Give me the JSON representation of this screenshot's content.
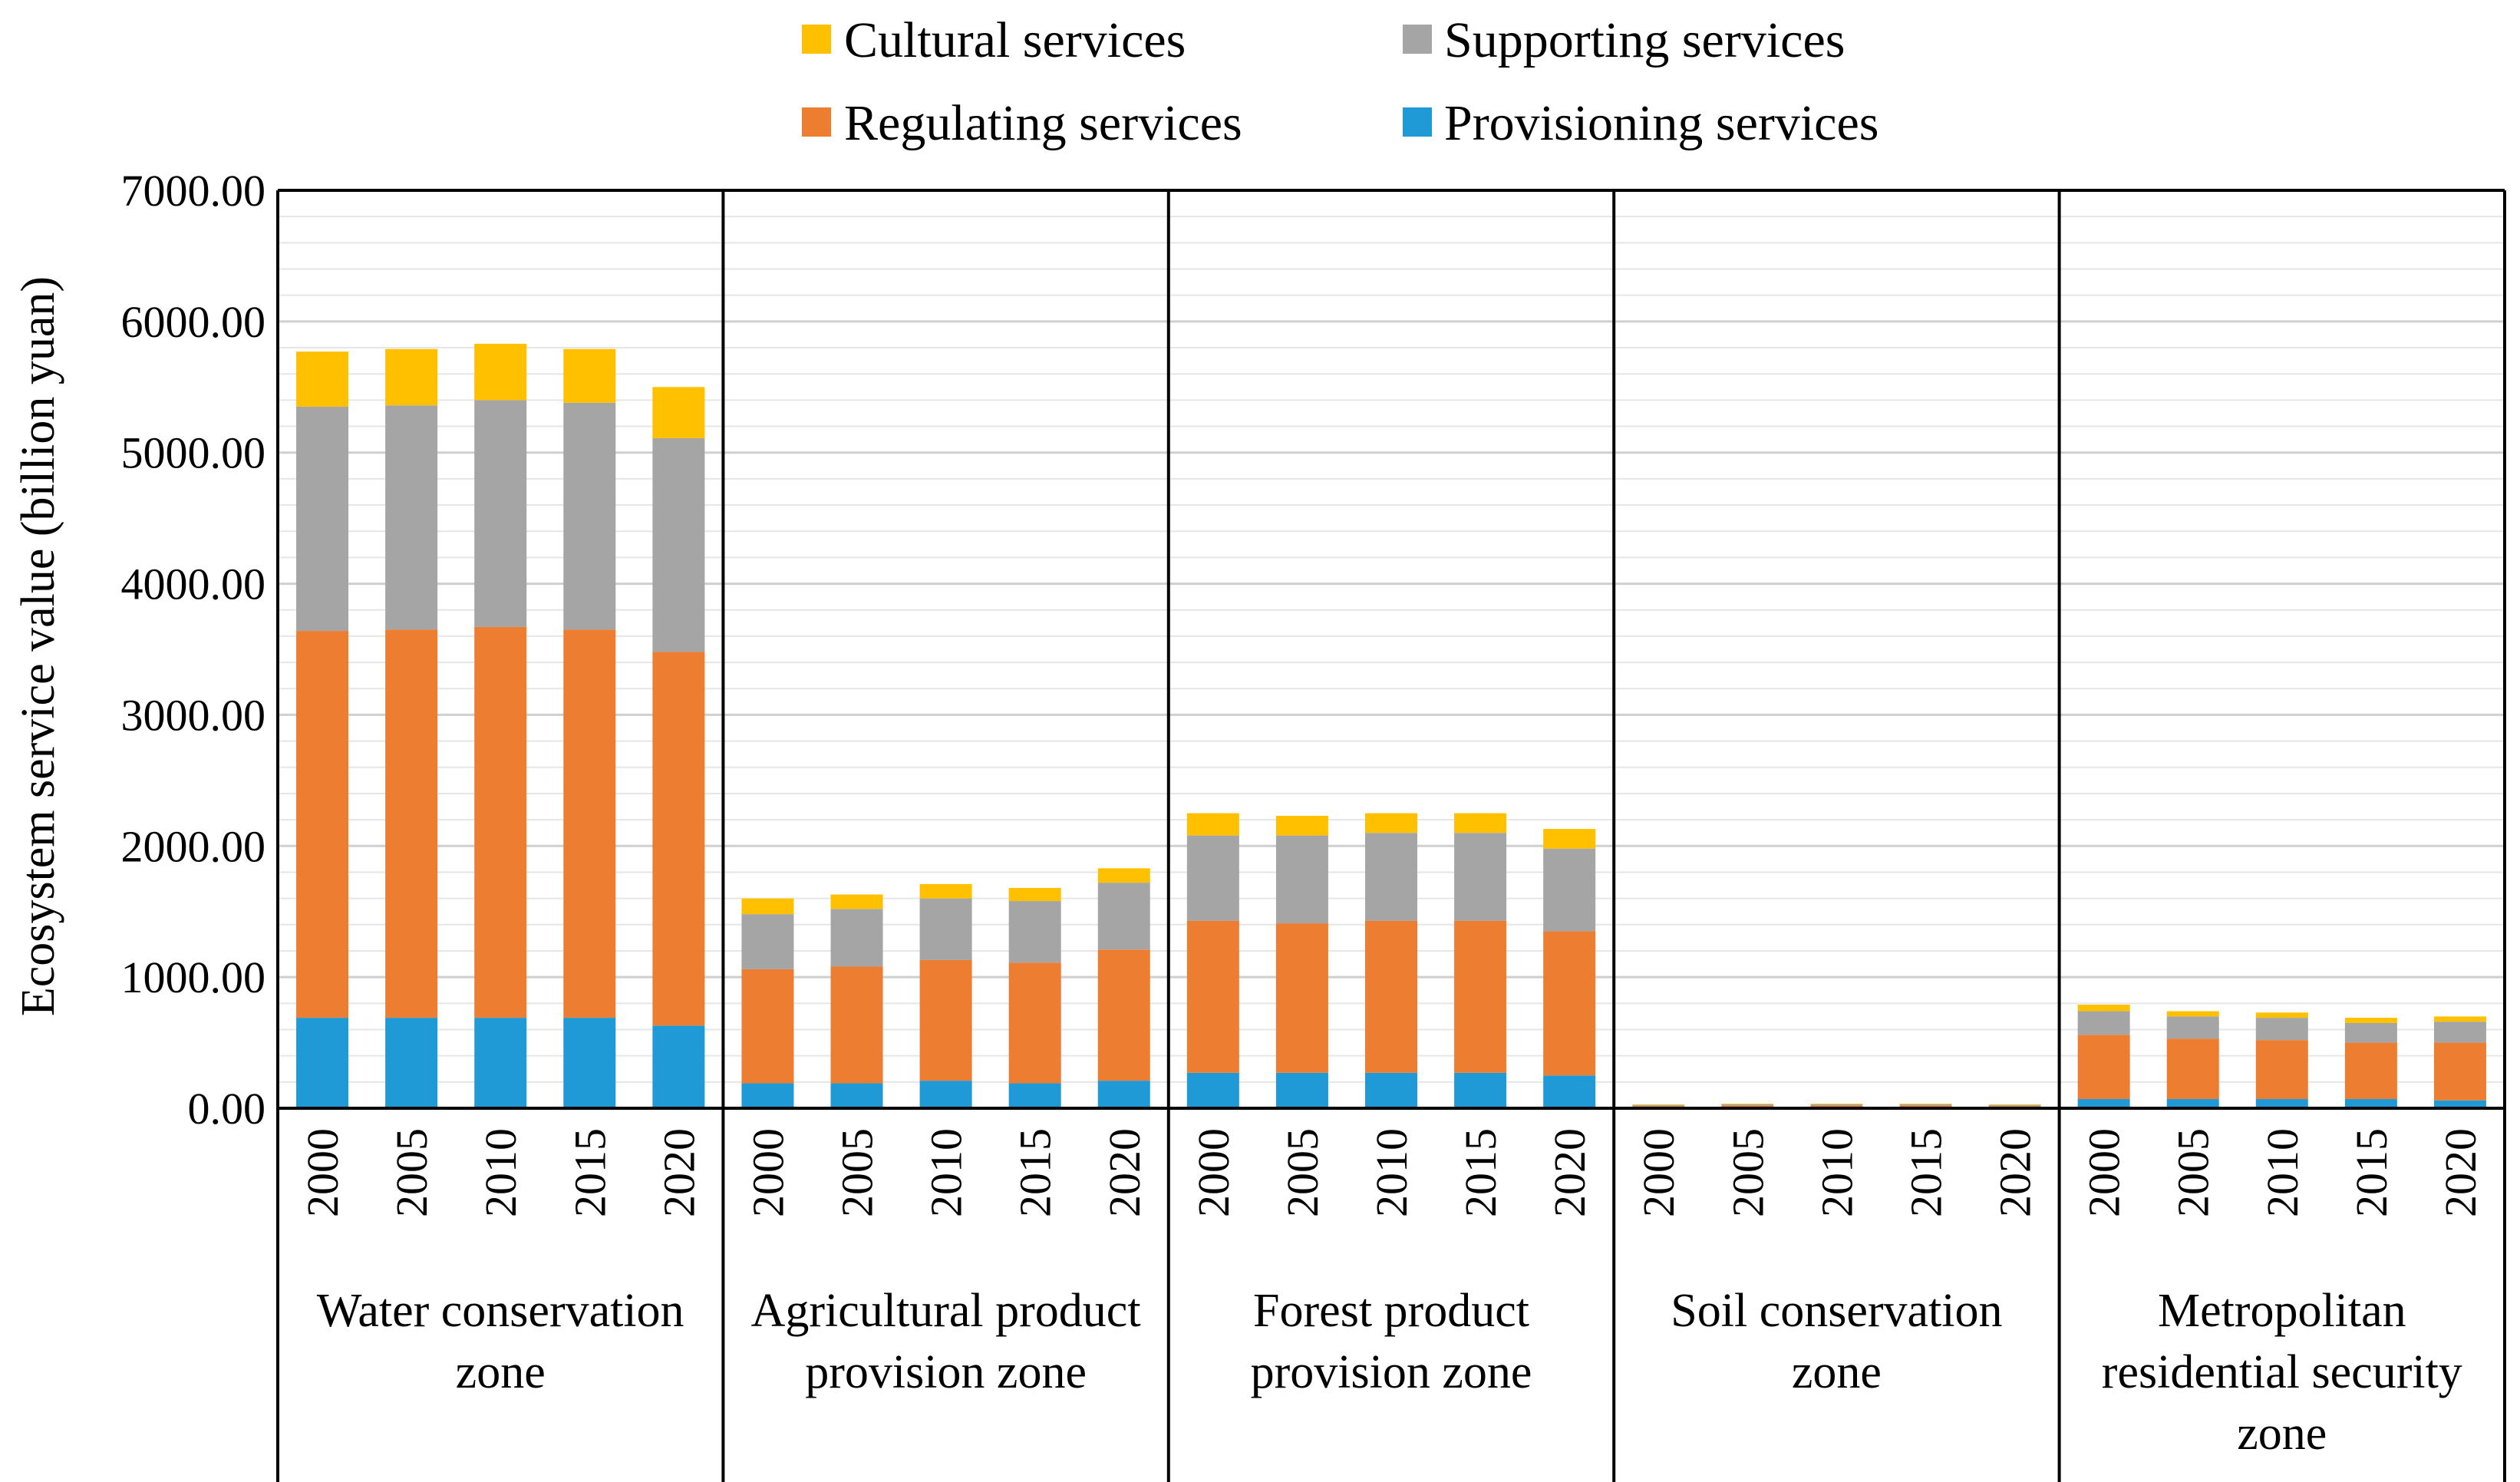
{
  "chart_data": {
    "type": "bar",
    "stacked": true,
    "ylabel": "Ecosystem service value (billion yuan)",
    "ylim": [
      0,
      7000
    ],
    "yticks": [
      0,
      1000,
      2000,
      3000,
      4000,
      5000,
      6000,
      7000
    ],
    "ytick_labels": [
      "0.00",
      "1000.00",
      "2000.00",
      "3000.00",
      "4000.00",
      "5000.00",
      "6000.00",
      "7000.00"
    ],
    "minor_gridlines_step": 200,
    "legend": [
      {
        "name": "Cultural services",
        "color": "#FFC000"
      },
      {
        "name": "Supporting services",
        "color": "#A5A5A5"
      },
      {
        "name": "Regulating services",
        "color": "#ED7D31"
      },
      {
        "name": "Provisioning services",
        "color": "#1F9AD6"
      }
    ],
    "groups": [
      {
        "name_lines": [
          "Water conservation",
          "zone"
        ]
      },
      {
        "name_lines": [
          "Agricultural product",
          "provision zone"
        ]
      },
      {
        "name_lines": [
          "Forest product",
          "provision zone"
        ]
      },
      {
        "name_lines": [
          "Soil conservation",
          "zone"
        ]
      },
      {
        "name_lines": [
          "Metropolitan",
          "residential security",
          "zone"
        ]
      }
    ],
    "categories": [
      "2000",
      "2005",
      "2010",
      "2015",
      "2020"
    ],
    "series": [
      {
        "name": "Provisioning services",
        "color": "#1F9AD6",
        "values": [
          [
            690,
            690,
            690,
            690,
            630
          ],
          [
            190,
            190,
            210,
            190,
            210
          ],
          [
            270,
            270,
            270,
            270,
            250
          ],
          [
            5,
            5,
            5,
            5,
            5
          ],
          [
            70,
            70,
            70,
            70,
            60
          ]
        ]
      },
      {
        "name": "Regulating services",
        "color": "#ED7D31",
        "values": [
          [
            2950,
            2960,
            2980,
            2960,
            2850
          ],
          [
            870,
            890,
            920,
            920,
            1000
          ],
          [
            1160,
            1140,
            1160,
            1160,
            1100
          ],
          [
            10,
            15,
            15,
            15,
            10
          ],
          [
            490,
            460,
            450,
            430,
            440
          ]
        ]
      },
      {
        "name": "Supporting services",
        "color": "#A5A5A5",
        "values": [
          [
            1710,
            1710,
            1730,
            1730,
            1630
          ],
          [
            420,
            440,
            470,
            470,
            510
          ],
          [
            650,
            670,
            670,
            670,
            630
          ],
          [
            10,
            10,
            10,
            10,
            10
          ],
          [
            180,
            170,
            170,
            150,
            160
          ]
        ]
      },
      {
        "name": "Cultural services",
        "color": "#FFC000",
        "values": [
          [
            420,
            430,
            430,
            410,
            390
          ],
          [
            120,
            110,
            110,
            100,
            110
          ],
          [
            170,
            150,
            150,
            150,
            150
          ],
          [
            5,
            5,
            5,
            5,
            5
          ],
          [
            50,
            40,
            40,
            40,
            40
          ]
        ]
      }
    ]
  }
}
